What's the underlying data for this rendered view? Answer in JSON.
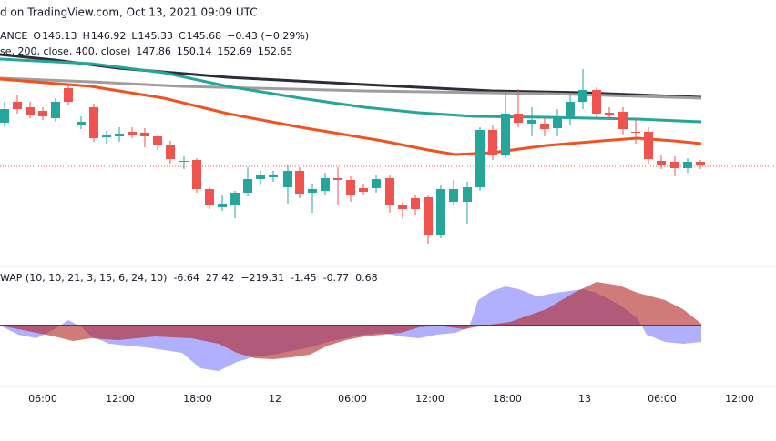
{
  "header": {
    "title": "d on TradingView.com, Oct 13, 2021 09:09 UTC"
  },
  "legend_main": [
    {
      "text": "ANCE",
      "color": "#131722"
    },
    {
      "text": "O",
      "color": "#131722"
    },
    {
      "text": "146.13",
      "color": "#ef5350"
    },
    {
      "text": "H",
      "color": "#131722"
    },
    {
      "text": "146.92",
      "color": "#ef5350"
    },
    {
      "text": "L",
      "color": "#131722"
    },
    {
      "text": "145.33",
      "color": "#ef5350"
    },
    {
      "text": "C",
      "color": "#131722"
    },
    {
      "text": "145.68",
      "color": "#ef5350"
    },
    {
      "text": "−0.43 (−0.29%)",
      "color": "#ef5350"
    }
  ],
  "legend_ma": [
    {
      "text": "se, 200, close, 400, close)",
      "color": "#131722"
    },
    {
      "text": "147.86",
      "color": "#f4511e"
    },
    {
      "text": "150.14",
      "color": "#26a69a"
    },
    {
      "text": "152.69",
      "color": "#2a2e39"
    },
    {
      "text": "152.65",
      "color": "#9e9e9e"
    }
  ],
  "legend_indicator": [
    {
      "text": "WAP (10, 10, 21, 3, 15, 6, 24, 10)",
      "color": "#131722"
    },
    {
      "text": "-6.64",
      "color": "#089981"
    },
    {
      "text": "27.42",
      "color": "#f23645"
    },
    {
      "text": "−219.31",
      "color": "#2962ff"
    },
    {
      "text": "-1.45",
      "color": "#f8bbd0"
    },
    {
      "text": "-0.77",
      "color": "#089981"
    },
    {
      "text": "0.68",
      "color": "#f23645"
    }
  ],
  "x_axis": [
    "06:00",
    "12:00",
    "18:00",
    "12",
    "06:00",
    "12:00",
    "18:00",
    "13",
    "06:00",
    "12:00"
  ]
}
